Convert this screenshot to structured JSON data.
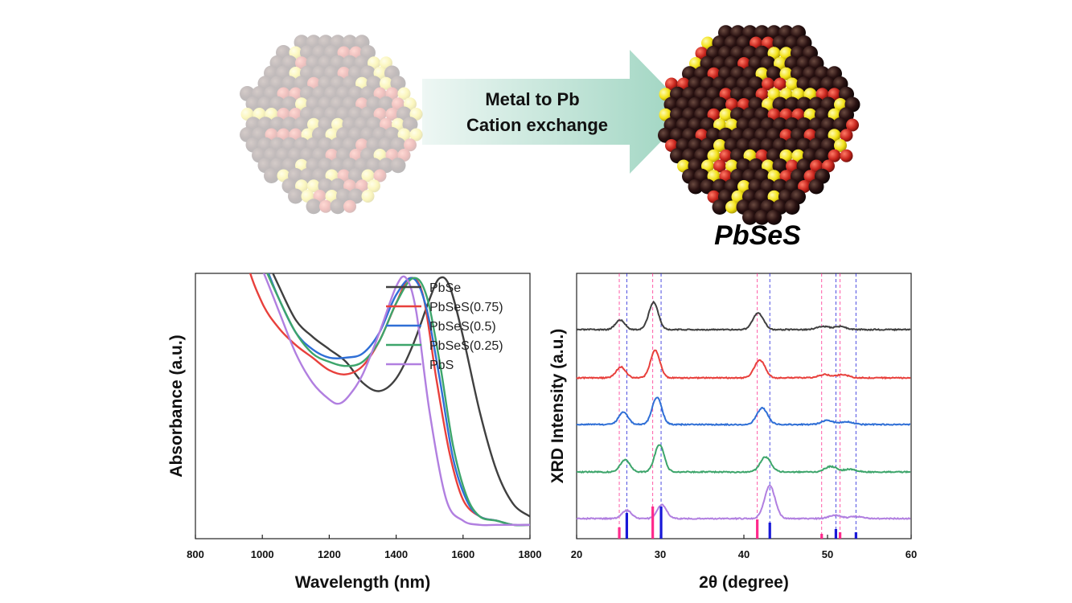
{
  "header": {
    "arrow_line1": "Metal to Pb",
    "arrow_line2": "Cation exchange",
    "product_label": "PbSeS"
  },
  "colors": {
    "PbSe": "#404040",
    "PbSeS(0.75)": "#e8403c",
    "PbSeS(0.5)": "#2f6fd6",
    "PbSeS(0.25)": "#3da56b",
    "PbS": "#b17fe0",
    "ref_pink": "#ff2a8c",
    "ref_blue": "#1818d8",
    "atom_dark": "#2a1212",
    "atom_red": "#c8261e",
    "atom_yellow": "#f3e21a",
    "arrow": "#a8d9c7"
  },
  "chart_data": [
    {
      "type": "line",
      "xlabel": "Wavelength (nm)",
      "ylabel": "Absorbance (a.u.)",
      "xlim": [
        800,
        1800
      ],
      "xticks": [
        "800",
        "1000",
        "1200",
        "1400",
        "1600",
        "1800"
      ],
      "y_ticks_shown": false,
      "legend_position": "top-right",
      "series": [
        {
          "name": "PbSe",
          "x": [
            800,
            850,
            900,
            950,
            1000,
            1050,
            1100,
            1150,
            1200,
            1250,
            1300,
            1350,
            1400,
            1450,
            1500,
            1530,
            1560,
            1600,
            1650,
            1700,
            1750,
            1800
          ],
          "y": [
            1.25,
            1.1,
            0.92,
            0.78,
            0.67,
            0.58,
            0.5,
            0.46,
            0.43,
            0.4,
            0.35,
            0.33,
            0.36,
            0.44,
            0.55,
            0.6,
            0.58,
            0.46,
            0.28,
            0.14,
            0.06,
            0.03
          ]
        },
        {
          "name": "PbSeS(0.75)",
          "x": [
            800,
            850,
            900,
            950,
            1000,
            1050,
            1100,
            1150,
            1200,
            1250,
            1300,
            1350,
            1400,
            1440,
            1480,
            1520,
            1560,
            1600,
            1650,
            1700,
            1750,
            1800
          ],
          "y": [
            1.25,
            1.1,
            0.85,
            0.65,
            0.54,
            0.48,
            0.44,
            0.41,
            0.38,
            0.37,
            0.39,
            0.45,
            0.54,
            0.6,
            0.56,
            0.36,
            0.18,
            0.07,
            0.03,
            0.02,
            0.01,
            0.01
          ]
        },
        {
          "name": "PbSeS(0.5)",
          "x": [
            800,
            850,
            900,
            950,
            1000,
            1050,
            1100,
            1150,
            1200,
            1250,
            1300,
            1350,
            1400,
            1450,
            1490,
            1530,
            1570,
            1610,
            1650,
            1700,
            1750,
            1800
          ],
          "y": [
            1.25,
            1.15,
            0.92,
            0.76,
            0.65,
            0.55,
            0.47,
            0.43,
            0.41,
            0.41,
            0.42,
            0.47,
            0.56,
            0.6,
            0.53,
            0.36,
            0.17,
            0.07,
            0.03,
            0.02,
            0.01,
            0.01
          ]
        },
        {
          "name": "PbSeS(0.25)",
          "x": [
            800,
            850,
            900,
            950,
            1000,
            1050,
            1100,
            1150,
            1200,
            1250,
            1300,
            1350,
            1400,
            1450,
            1490,
            1530,
            1570,
            1610,
            1650,
            1700,
            1750,
            1800
          ],
          "y": [
            1.25,
            1.12,
            0.9,
            0.75,
            0.64,
            0.55,
            0.47,
            0.42,
            0.4,
            0.39,
            0.4,
            0.45,
            0.54,
            0.6,
            0.56,
            0.4,
            0.2,
            0.08,
            0.03,
            0.02,
            0.01,
            0.01
          ]
        },
        {
          "name": "PbS",
          "x": [
            800,
            850,
            900,
            950,
            1000,
            1050,
            1100,
            1150,
            1200,
            1230,
            1260,
            1300,
            1350,
            1400,
            1430,
            1460,
            1500,
            1550,
            1600,
            1650,
            1700,
            1800
          ],
          "y": [
            0.95,
            0.85,
            0.75,
            0.7,
            0.62,
            0.52,
            0.42,
            0.35,
            0.31,
            0.3,
            0.32,
            0.37,
            0.47,
            0.58,
            0.6,
            0.52,
            0.28,
            0.07,
            0.02,
            0.01,
            0.01,
            0.01
          ]
        }
      ]
    },
    {
      "type": "line",
      "xlabel": "2θ (degree)",
      "ylabel": "XRD Intensity (a.u.)",
      "xlim": [
        20,
        60
      ],
      "xticks": [
        "20",
        "30",
        "40",
        "50",
        "60"
      ],
      "y_ticks_shown": false,
      "series": [
        {
          "name": "PbSe",
          "peaks": [
            [
              25.2,
              0.35,
              0.8
            ],
            [
              29.2,
              1.0,
              0.8
            ],
            [
              41.7,
              0.6,
              0.9
            ],
            [
              49.4,
              0.12,
              1.0
            ],
            [
              51.5,
              0.12,
              1.0
            ]
          ]
        },
        {
          "name": "PbSeS(0.75)",
          "peaks": [
            [
              25.3,
              0.4,
              0.8
            ],
            [
              29.4,
              1.0,
              0.8
            ],
            [
              41.9,
              0.65,
              0.9
            ],
            [
              49.6,
              0.12,
              1.0
            ],
            [
              51.8,
              0.12,
              1.0
            ]
          ]
        },
        {
          "name": "PbSeS(0.5)",
          "peaks": [
            [
              25.6,
              0.45,
              0.8
            ],
            [
              29.6,
              1.0,
              0.8
            ],
            [
              42.2,
              0.6,
              0.9
            ],
            [
              50.0,
              0.15,
              1.0
            ],
            [
              52.3,
              0.1,
              1.0
            ]
          ]
        },
        {
          "name": "PbSeS(0.25)",
          "peaks": [
            [
              25.8,
              0.45,
              0.8
            ],
            [
              29.9,
              1.0,
              0.8
            ],
            [
              42.6,
              0.55,
              0.9
            ],
            [
              50.4,
              0.2,
              1.0
            ],
            [
              52.7,
              0.1,
              1.0
            ]
          ]
        },
        {
          "name": "PbS",
          "peaks": [
            [
              26.0,
              0.3,
              0.8
            ],
            [
              30.2,
              0.5,
              0.8
            ],
            [
              43.1,
              1.2,
              0.9
            ],
            [
              50.9,
              0.12,
              1.0
            ],
            [
              53.4,
              0.08,
              1.0
            ]
          ]
        }
      ],
      "reference_lines": [
        {
          "x": [
            25.1,
            29.1,
            41.6,
            49.3,
            51.5
          ],
          "heights": [
            0.35,
            1.0,
            0.6,
            0.15,
            0.2
          ]
        },
        {
          "x": [
            26.0,
            30.1,
            43.1,
            51.0,
            53.4
          ],
          "heights": [
            0.8,
            1.0,
            0.5,
            0.3,
            0.2
          ]
        }
      ]
    }
  ]
}
